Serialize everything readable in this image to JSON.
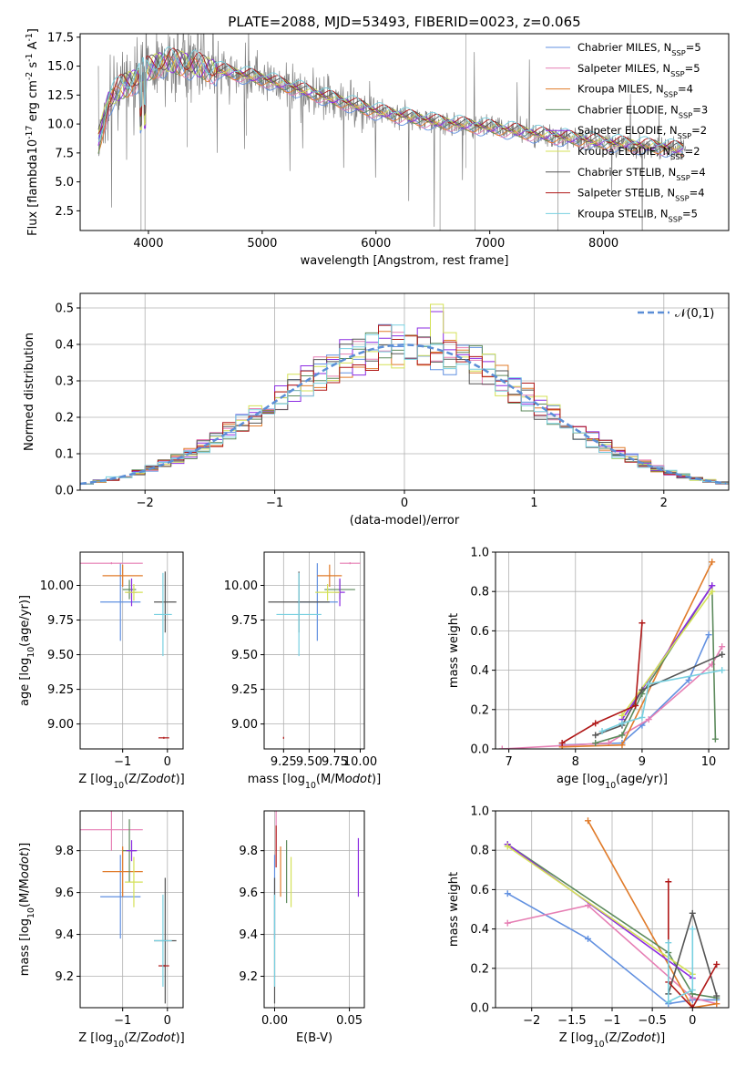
{
  "colors": [
    "#6190e0",
    "#e67fb4",
    "#e07b2a",
    "#5c8a5c",
    "#8b2be2",
    "#d4e157",
    "#555555",
    "#b01818",
    "#78d0e0"
  ],
  "series_names": [
    "Chabrier MILES, N$_{SSP}$=5",
    "Salpeter MILES, N$_{SSP}$=5",
    "Kroupa MILES, N$_{SSP}$=4",
    "Chabrier ELODIE, N$_{SSP}$=3",
    "Salpeter ELODIE, N$_{SSP}$=2",
    "Kroupa ELODIE, N$_{SSP}$=2",
    "Chabrier STELIB, N$_{SSP}$=4",
    "Salpeter STELIB, N$_{SSP}$=4",
    "Kroupa STELIB, N$_{SSP}$=5"
  ],
  "chart_data": [
    {
      "id": "spectrum",
      "type": "line",
      "title": "PLATE=2088, MJD=53493, FIBERID=0023, z=0.065",
      "xlabel": "wavelength [Angstrom, rest frame]",
      "ylabel": "Flux [f$_\\lambda$10$^{-17}$ erg cm$^{-2}$ s$^{-1}$ A$^{-1}$]",
      "xlim": [
        3400,
        9100
      ],
      "ylim": [
        0.8,
        17.8
      ],
      "xticks": [
        4000,
        5000,
        6000,
        7000,
        8000
      ],
      "yticks": [
        2.5,
        5.0,
        7.5,
        10.0,
        12.5,
        15.0,
        17.5
      ],
      "data_color": "#808080",
      "model_shape": {
        "x": [
          3550,
          3650,
          3750,
          3900,
          4000,
          4100,
          4300,
          4500,
          4700,
          5000,
          5500,
          6000,
          6500,
          7000,
          7500,
          8000,
          8500,
          8700
        ],
        "y": [
          8.0,
          12.0,
          13.0,
          14.0,
          14.7,
          15.3,
          15.3,
          14.8,
          14.5,
          13.9,
          12.5,
          11.1,
          10.2,
          9.7,
          9.0,
          8.4,
          8.0,
          7.8
        ]
      },
      "legend": "top-right",
      "grid": false
    },
    {
      "id": "residuals",
      "type": "histogram",
      "xlabel": "(data-model)/error",
      "ylabel": "Normed distribution",
      "xlim": [
        -2.5,
        2.5
      ],
      "ylim": [
        0,
        0.54
      ],
      "xticks": [
        -2,
        -1,
        0,
        1,
        2
      ],
      "yticks": [
        0.0,
        0.1,
        0.2,
        0.3,
        0.4,
        0.5
      ],
      "legend_label": "$\\mathcal{N}(0,1)$",
      "legend": "top-right",
      "grid": true,
      "peak_values": {
        "series_6": 0.51,
        "series_5": 0.49
      }
    },
    {
      "id": "age_vs_Z",
      "type": "errorbar",
      "xlabel": "Z [log$_{10}$(Z/Z$_\\odot$)]",
      "ylabel": "age  [log$_{10}$(age/yr)]",
      "xlim": [
        -1.95,
        0.35
      ],
      "ylim": [
        8.82,
        10.24
      ],
      "xticks": [
        -1,
        0
      ],
      "yticks": [
        9.0,
        9.25,
        9.5,
        9.75,
        10.0
      ],
      "grid": true,
      "points": [
        {
          "s": 0,
          "x": -1.05,
          "xerr": 0.45,
          "y": 9.88,
          "yerr": 0.28
        },
        {
          "s": 1,
          "x": -1.25,
          "xerr": 0.7,
          "y": 10.16,
          "yerr": 0.0
        },
        {
          "s": 2,
          "x": -1.0,
          "xerr": 0.45,
          "y": 10.07,
          "yerr": 0.08
        },
        {
          "s": 3,
          "x": -0.85,
          "xerr": 0.15,
          "y": 9.97,
          "yerr": 0.07
        },
        {
          "s": 4,
          "x": -0.8,
          "xerr": 0.12,
          "y": 9.95,
          "yerr": 0.1
        },
        {
          "s": 5,
          "x": -0.75,
          "xerr": 0.2,
          "y": 9.95,
          "yerr": 0.06
        },
        {
          "s": 6,
          "x": -0.05,
          "xerr": 0.25,
          "y": 9.88,
          "yerr": 0.22
        },
        {
          "s": 7,
          "x": -0.08,
          "xerr": 0.12,
          "y": 8.9,
          "yerr": 0.0
        },
        {
          "s": 8,
          "x": -0.1,
          "xerr": 0.2,
          "y": 9.79,
          "yerr": 0.3
        }
      ]
    },
    {
      "id": "age_vs_mass",
      "type": "errorbar",
      "xlabel": "mass [log$_{10}$(M/M$_\\odot$)]",
      "xlim": [
        9.06,
        10.04
      ],
      "ylim": [
        8.82,
        10.24
      ],
      "xticks": [
        9.25,
        9.5,
        9.75,
        10.0
      ],
      "xticklabels": [
        "9.25",
        "9.50",
        "9.75",
        "10.00"
      ],
      "yticks": [
        9.0,
        9.25,
        9.5,
        9.75,
        10.0
      ],
      "grid": true,
      "points": [
        {
          "s": 0,
          "x": 9.58,
          "xerr": 0.2,
          "y": 9.88,
          "yerr": 0.28
        },
        {
          "s": 1,
          "x": 9.9,
          "xerr": 0.1,
          "y": 10.16,
          "yerr": 0.0
        },
        {
          "s": 2,
          "x": 9.7,
          "xerr": 0.12,
          "y": 10.07,
          "yerr": 0.08
        },
        {
          "s": 3,
          "x": 9.8,
          "xerr": 0.15,
          "y": 9.97,
          "yerr": 0.07
        },
        {
          "s": 4,
          "x": 9.8,
          "xerr": 0.05,
          "y": 9.95,
          "yerr": 0.1
        },
        {
          "s": 5,
          "x": 9.68,
          "xerr": 0.12,
          "y": 9.95,
          "yerr": 0.06
        },
        {
          "s": 6,
          "x": 9.4,
          "xerr": 0.3,
          "y": 9.88,
          "yerr": 0.22
        },
        {
          "s": 7,
          "x": 9.25,
          "xerr": 0.0,
          "y": 8.9,
          "yerr": 0.0
        },
        {
          "s": 8,
          "x": 9.4,
          "xerr": 0.22,
          "y": 9.79,
          "yerr": 0.3
        }
      ]
    },
    {
      "id": "mw_vs_age",
      "type": "line",
      "xlabel": "age  [log$_{10}$(age/yr)]",
      "ylabel": "mass weight",
      "xlim": [
        6.8,
        10.3
      ],
      "ylim": [
        0,
        1.0
      ],
      "xticks": [
        7,
        8,
        9,
        10
      ],
      "yticks": [
        0.0,
        0.2,
        0.4,
        0.6,
        0.8,
        1.0
      ],
      "grid": true,
      "series": [
        {
          "s": 0,
          "x": [
            7.8,
            8.7,
            9.0,
            9.7,
            10.0
          ],
          "y": [
            0.02,
            0.03,
            0.12,
            0.35,
            0.58
          ]
        },
        {
          "s": 1,
          "x": [
            6.9,
            8.5,
            9.1,
            10.05,
            10.2
          ],
          "y": [
            0.0,
            0.03,
            0.15,
            0.43,
            0.52
          ]
        },
        {
          "s": 2,
          "x": [
            7.8,
            8.7,
            10.05
          ],
          "y": [
            0.01,
            0.02,
            0.95
          ]
        },
        {
          "s": 3,
          "x": [
            8.3,
            8.7,
            9.0,
            10.05,
            10.1
          ],
          "y": [
            0.03,
            0.07,
            0.28,
            0.83,
            0.05
          ]
        },
        {
          "s": 4,
          "x": [
            8.7,
            10.05
          ],
          "y": [
            0.15,
            0.83
          ]
        },
        {
          "s": 5,
          "x": [
            8.7,
            10.05
          ],
          "y": [
            0.17,
            0.8
          ]
        },
        {
          "s": 6,
          "x": [
            8.3,
            8.7,
            9.0,
            10.2
          ],
          "y": [
            0.07,
            0.12,
            0.3,
            0.48
          ]
        },
        {
          "s": 7,
          "x": [
            7.8,
            8.3,
            8.9,
            9.0
          ],
          "y": [
            0.03,
            0.13,
            0.22,
            0.64
          ]
        },
        {
          "s": 8,
          "x": [
            8.4,
            8.7,
            9.0,
            9.1,
            10.2
          ],
          "y": [
            0.09,
            0.13,
            0.16,
            0.33,
            0.4
          ]
        }
      ]
    },
    {
      "id": "mass_vs_Z",
      "type": "errorbar",
      "xlabel": "Z [log$_{10}$(Z/Z$_\\odot$)]",
      "ylabel": "mass [log$_{10}$(M/M$_\\odot$)]",
      "xlim": [
        -1.95,
        0.35
      ],
      "ylim": [
        9.05,
        9.99
      ],
      "xticks": [
        -1,
        0
      ],
      "yticks": [
        9.2,
        9.4,
        9.6,
        9.8
      ],
      "grid": true,
      "points": [
        {
          "s": 0,
          "x": -1.05,
          "xerr": 0.45,
          "y": 9.58,
          "yerr": 0.2
        },
        {
          "s": 1,
          "x": -1.25,
          "xerr": 0.7,
          "y": 9.9,
          "yerr": 0.1
        },
        {
          "s": 2,
          "x": -1.0,
          "xerr": 0.45,
          "y": 9.7,
          "yerr": 0.12
        },
        {
          "s": 3,
          "x": -0.85,
          "xerr": 0.15,
          "y": 9.8,
          "yerr": 0.15
        },
        {
          "s": 4,
          "x": -0.8,
          "xerr": 0.12,
          "y": 9.8,
          "yerr": 0.05
        },
        {
          "s": 5,
          "x": -0.75,
          "xerr": 0.2,
          "y": 9.65,
          "yerr": 0.12
        },
        {
          "s": 6,
          "x": -0.05,
          "xerr": 0.25,
          "y": 9.37,
          "yerr": 0.3
        },
        {
          "s": 7,
          "x": -0.08,
          "xerr": 0.12,
          "y": 9.25,
          "yerr": 0.0
        },
        {
          "s": 8,
          "x": -0.1,
          "xerr": 0.2,
          "y": 9.37,
          "yerr": 0.22
        }
      ]
    },
    {
      "id": "mass_vs_ebv",
      "type": "errorbar",
      "xlabel": "E(B-V)",
      "xlim": [
        -0.007,
        0.06
      ],
      "ylim": [
        9.05,
        9.99
      ],
      "xticks": [
        0.0,
        0.05
      ],
      "xticklabels": [
        "0.00",
        "0.05"
      ],
      "yticks": [
        9.2,
        9.4,
        9.6,
        9.8
      ],
      "grid": true,
      "points": [
        {
          "s": 0,
          "x": 0.0,
          "xerr": 0,
          "y": 9.58,
          "yerr": 0.2
        },
        {
          "s": 1,
          "x": 0.001,
          "xerr": 0,
          "y": 9.9,
          "yerr": 0.1
        },
        {
          "s": 2,
          "x": 0.004,
          "xerr": 0,
          "y": 9.7,
          "yerr": 0.12
        },
        {
          "s": 3,
          "x": 0.008,
          "xerr": 0,
          "y": 9.7,
          "yerr": 0.15
        },
        {
          "s": 4,
          "x": 0.056,
          "xerr": 0,
          "y": 9.72,
          "yerr": 0.14
        },
        {
          "s": 5,
          "x": 0.011,
          "xerr": 0,
          "y": 9.65,
          "yerr": 0.12
        },
        {
          "s": 6,
          "x": 0.0,
          "xerr": 0,
          "y": 9.37,
          "yerr": 0.3
        },
        {
          "s": 7,
          "x": 0.001,
          "xerr": 0,
          "y": 9.82,
          "yerr": 0.1
        },
        {
          "s": 8,
          "x": 0.0,
          "xerr": 0,
          "y": 9.37,
          "yerr": 0.22
        }
      ]
    },
    {
      "id": "mw_vs_Z",
      "type": "line",
      "xlabel": "Z [log$_{10}$(Z/Z$_\\odot$)]",
      "ylabel": "mass weight",
      "xlim": [
        -2.45,
        0.45
      ],
      "ylim": [
        0,
        1.0
      ],
      "xticks": [
        -2.0,
        -1.5,
        -1.0,
        -0.5,
        0.0
      ],
      "yticks": [
        0.0,
        0.2,
        0.4,
        0.6,
        0.8,
        1.0
      ],
      "grid": true,
      "series": [
        {
          "s": 0,
          "x": [
            -2.3,
            -1.3,
            -0.3,
            0.0,
            0.3
          ],
          "y": [
            0.58,
            0.35,
            0.02,
            0.04,
            0.04
          ]
        },
        {
          "s": 1,
          "x": [
            -2.3,
            -1.3,
            0.0,
            0.3
          ],
          "y": [
            0.43,
            0.52,
            0.05,
            0.02
          ]
        },
        {
          "s": 2,
          "x": [
            -1.3,
            0.0,
            0.3
          ],
          "y": [
            0.95,
            0.0,
            0.02
          ]
        },
        {
          "s": 3,
          "x": [
            -2.3,
            -0.3,
            0.0,
            0.3
          ],
          "y": [
            0.83,
            0.28,
            0.07,
            0.05
          ]
        },
        {
          "s": 4,
          "x": [
            -2.3,
            0.0
          ],
          "y": [
            0.83,
            0.15
          ]
        },
        {
          "s": 5,
          "x": [
            -2.3,
            0.0
          ],
          "y": [
            0.82,
            0.17
          ]
        },
        {
          "s": 6,
          "x": [
            -0.3,
            0.0,
            0.3
          ],
          "y": [
            0.07,
            0.48,
            0.06
          ]
        },
        {
          "s": 7,
          "x": [
            -0.3,
            -0.3,
            0.0,
            0.3
          ],
          "y": [
            0.64,
            0.13,
            0.0,
            0.22
          ]
        },
        {
          "s": 8,
          "x": [
            -0.3,
            -0.3,
            0.0,
            0.0
          ],
          "y": [
            0.33,
            0.03,
            0.09,
            0.4
          ]
        }
      ]
    }
  ]
}
